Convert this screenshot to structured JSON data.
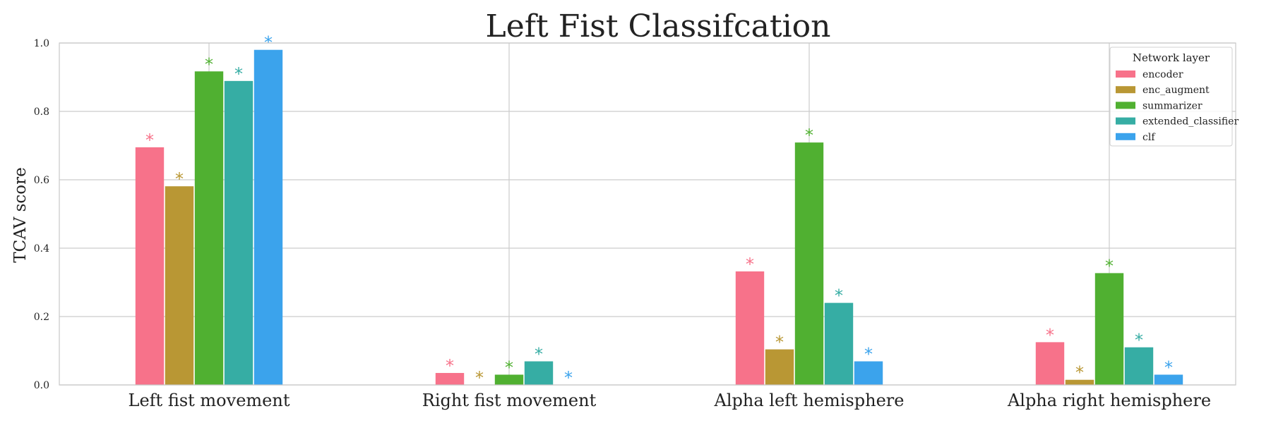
{
  "chart_data": {
    "type": "bar",
    "title": "Left Fist Classifcation",
    "xlabel": "",
    "ylabel": "TCAV score",
    "ylim": [
      0,
      1.0
    ],
    "yticks": [
      "0.0",
      "0.2",
      "0.4",
      "0.6",
      "0.8",
      "1.0"
    ],
    "categories": [
      "Left fist movement",
      "Right fist movement",
      "Alpha left hemisphere",
      "Alpha right hemisphere"
    ],
    "legend_title": "Network layer",
    "legend_position": "top-right",
    "grid": true,
    "significance_marker": "*",
    "series": [
      {
        "name": "encoder",
        "color": "#f7728a",
        "values": [
          0.695,
          0.035,
          0.332,
          0.125
        ]
      },
      {
        "name": "enc_augment",
        "color": "#b99734",
        "values": [
          0.581,
          0.0,
          0.104,
          0.015
        ]
      },
      {
        "name": "summarizer",
        "color": "#50b031",
        "values": [
          0.917,
          0.03,
          0.709,
          0.327
        ]
      },
      {
        "name": "extended_classifier",
        "color": "#36ada4",
        "values": [
          0.889,
          0.069,
          0.24,
          0.11
        ]
      },
      {
        "name": "clf",
        "color": "#3ba3ec",
        "values": [
          0.98,
          0.0,
          0.069,
          0.03
        ]
      }
    ]
  }
}
